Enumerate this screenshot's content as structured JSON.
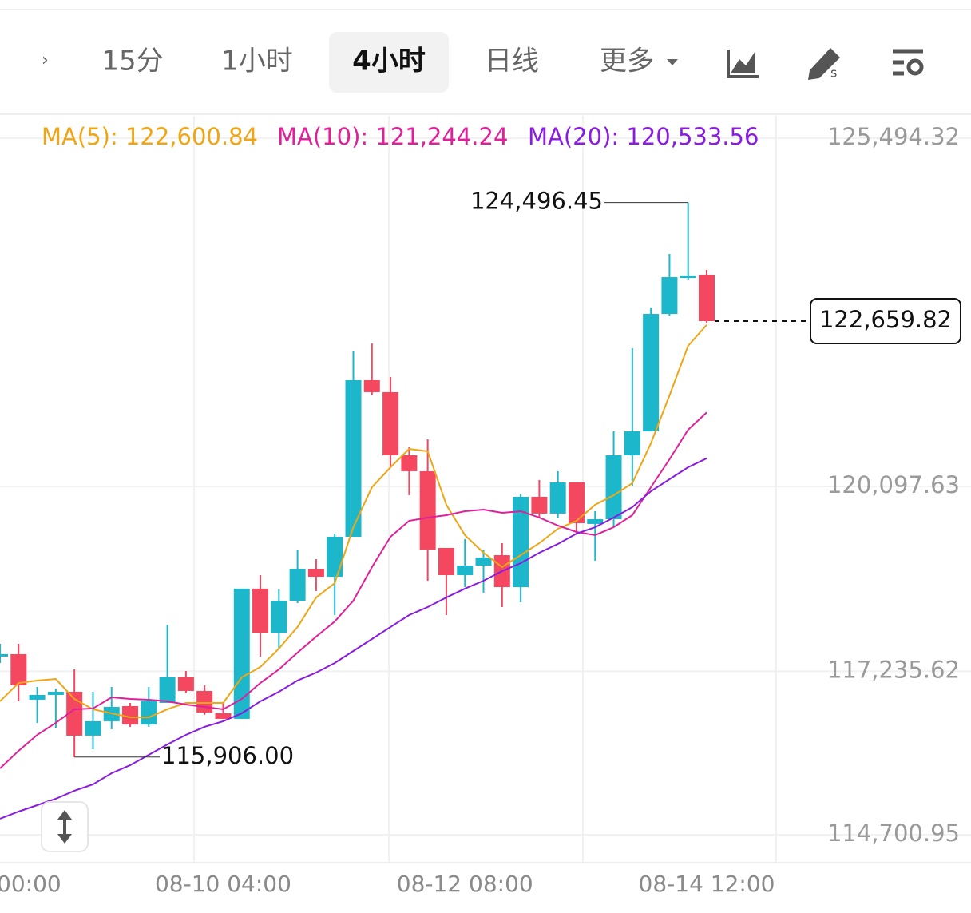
{
  "toolbar": {
    "tabs": [
      "15分",
      "1小时",
      "4小时",
      "日线",
      "更多"
    ],
    "active": 2
  },
  "chart_data": {
    "type": "candlestick",
    "categories": [
      null,
      null,
      null,
      null,
      null,
      null,
      null,
      null,
      null,
      null,
      null,
      null,
      "08-10 04:00",
      null,
      null,
      null,
      null,
      null,
      null,
      null,
      null,
      null,
      null,
      null,
      null,
      "08-12 08:00",
      null,
      null,
      null,
      null,
      null,
      null,
      null,
      null,
      null,
      null,
      null,
      null,
      "08-14 12:00"
    ],
    "x_edge_label": "00:00",
    "open": [
      117463,
      117500,
      116795,
      116869,
      116918,
      116238,
      116461,
      116696,
      116411,
      116745,
      117141,
      116931,
      116584,
      116498,
      118515,
      117834,
      118329,
      118824,
      118700,
      119319,
      121744,
      121559,
      120581,
      120334,
      119146,
      118725,
      118873,
      119034,
      118539,
      119938,
      119678,
      120160,
      119517,
      119591,
      120581,
      120952,
      122771,
      123328,
      123378
    ],
    "high": [
      117661,
      117661,
      116993,
      116968,
      117265,
      116918,
      116993,
      116745,
      116993,
      117958,
      117240,
      117017,
      116745,
      118515,
      118725,
      118502,
      119121,
      118972,
      119368,
      122190,
      122313,
      121794,
      120705,
      120829,
      119146,
      119282,
      119121,
      119220,
      119987,
      120198,
      120334,
      120160,
      119715,
      120952,
      122239,
      122870,
      123699,
      124496.45,
      123452
    ],
    "low": [
      117364,
      116770,
      116436,
      116349,
      115906,
      116027,
      116337,
      116374,
      116374,
      116745,
      116894,
      116560,
      116498,
      116498,
      117463,
      117587,
      118292,
      118478,
      118106,
      119319,
      121509,
      120395,
      119962,
      118638,
      118106,
      118539,
      118453,
      118230,
      118304,
      119616,
      119616,
      119368,
      118948,
      119467,
      120111,
      120952,
      122747,
      123303,
      122635
    ],
    "close": [
      117500,
      117017,
      116869,
      116918,
      116238,
      116461,
      116683,
      116411,
      116782,
      117141,
      116931,
      116597,
      116498,
      118515,
      117834,
      118329,
      118824,
      118700,
      119319,
      121744,
      121559,
      120581,
      120334,
      119121,
      118725,
      118873,
      118997,
      118539,
      119938,
      119678,
      120160,
      119529,
      119591,
      120581,
      120952,
      122771,
      123340,
      123365,
      122659.82
    ],
    "up_color": "#1db7cc",
    "down_color": "#f44860",
    "series": [
      {
        "name": "MA(5): 122,600.84",
        "color": "#f0a515",
        "values": [
          116770,
          117054,
          117092,
          117116,
          116807,
          116646,
          116584,
          116522,
          116522,
          116646,
          116745,
          116745,
          116745,
          117141,
          117302,
          117587,
          117921,
          118378,
          118601,
          119467,
          120086,
          120395,
          120680,
          120643,
          119814,
          119344,
          119071,
          118849,
          119034,
          119220,
          119443,
          119566,
          119814,
          119962,
          120148,
          120767,
          121509,
          122276,
          122600.84
        ]
      },
      {
        "name": "MA(10): 121,244.24",
        "color": "#e0209a",
        "values": [
          115730,
          116003,
          116250,
          116436,
          116646,
          116659,
          116832,
          116807,
          116795,
          116770,
          116720,
          116683,
          116646,
          116807,
          117054,
          117265,
          117525,
          117772,
          118007,
          118329,
          118849,
          119319,
          119566,
          119616,
          119653,
          119715,
          119740,
          119690,
          119715,
          119616,
          119492,
          119393,
          119344,
          119467,
          119653,
          120086,
          120519,
          120977,
          121244.24
        ]
      },
      {
        "name": "MA(20): 120,533.56",
        "color": "#8a1be0",
        "values": [
          114951,
          115062,
          115161,
          115260,
          115384,
          115483,
          115656,
          115780,
          115941,
          116102,
          116250,
          116374,
          116461,
          116584,
          116770,
          116918,
          117092,
          117215,
          117364,
          117549,
          117735,
          117921,
          118106,
          118230,
          118378,
          118515,
          118638,
          118787,
          118910,
          119071,
          119208,
          119368,
          119467,
          119616,
          119777,
          120024,
          120210,
          120395,
          120533.56
        ]
      }
    ],
    "ylim": [
      114270,
      125840
    ],
    "yticks": [
      {
        "value": 125494.32,
        "label": "125,494.32"
      },
      {
        "value": 120097.63,
        "label": "120,097.63"
      },
      {
        "value": 117235.62,
        "label": "117,235.62"
      },
      {
        "value": 114700.95,
        "label": "114,700.95"
      }
    ],
    "grid": true,
    "high_label": {
      "value": 124496.45,
      "label": "124,496.45"
    },
    "low_label": {
      "value": 115906.0,
      "label": "115,906.00"
    },
    "current_price": {
      "value": 122659.82,
      "label": "122,659.82"
    }
  }
}
